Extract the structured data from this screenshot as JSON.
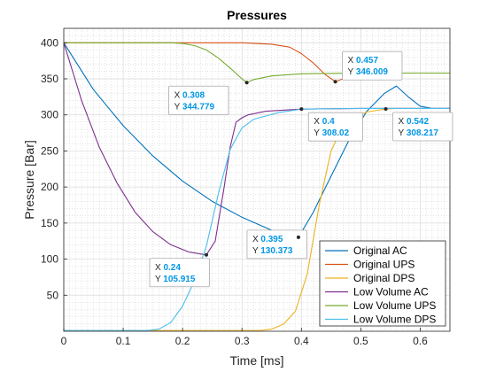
{
  "chart_data": {
    "type": "line",
    "title": "Pressures",
    "xlabel": "Time [ms]",
    "ylabel": "Pressure [Bar]",
    "xlim": [
      0,
      0.65
    ],
    "ylim": [
      0,
      420
    ],
    "xticks": [
      0,
      0.1,
      0.2,
      0.3,
      0.4,
      0.5,
      0.6
    ],
    "xtick_labels": [
      "0",
      "0.1",
      "0.2",
      "0.3",
      "0.4",
      "0.5",
      "0.6"
    ],
    "yticks": [
      50,
      100,
      150,
      200,
      250,
      300,
      350,
      400
    ],
    "ytick_labels": [
      "50",
      "100",
      "150",
      "200",
      "250",
      "300",
      "350",
      "400"
    ],
    "grid": "major and minor",
    "legend_position": "bottom-right",
    "series": [
      {
        "name": "Original AC",
        "color": "#0072BD",
        "x": [
          0,
          0.05,
          0.1,
          0.15,
          0.2,
          0.25,
          0.3,
          0.35,
          0.395,
          0.42,
          0.45,
          0.48,
          0.51,
          0.54,
          0.56,
          0.58,
          0.6,
          0.62,
          0.65
        ],
        "y": [
          400,
          335,
          285,
          243,
          208,
          180,
          158,
          140,
          130.373,
          165,
          215,
          265,
          305,
          330,
          340,
          325,
          312,
          309,
          309
        ]
      },
      {
        "name": "Original UPS",
        "color": "#D95319",
        "x": [
          0,
          0.3,
          0.35,
          0.38,
          0.4,
          0.42,
          0.44,
          0.457,
          0.47,
          0.5,
          0.55,
          0.6,
          0.65
        ],
        "y": [
          400,
          400,
          398,
          394,
          385,
          372,
          356,
          346.009,
          350,
          356,
          358,
          358,
          358
        ]
      },
      {
        "name": "Original DPS",
        "color": "#EDB120",
        "x": [
          0,
          0.33,
          0.35,
          0.37,
          0.39,
          0.41,
          0.43,
          0.45,
          0.47,
          0.49,
          0.51,
          0.542,
          0.56,
          0.6,
          0.65
        ],
        "y": [
          1,
          1,
          3,
          10,
          28,
          80,
          175,
          250,
          285,
          298,
          304,
          308.217,
          309,
          309,
          309
        ]
      },
      {
        "name": "Low Volume AC",
        "color": "#7E2F8E",
        "x": [
          0,
          0.03,
          0.06,
          0.09,
          0.12,
          0.15,
          0.18,
          0.21,
          0.24,
          0.255,
          0.27,
          0.28,
          0.29,
          0.3,
          0.31,
          0.34,
          0.4,
          0.5,
          0.65
        ],
        "y": [
          400,
          320,
          255,
          205,
          165,
          138,
          120,
          110,
          105.915,
          125,
          200,
          255,
          290,
          296,
          300,
          305,
          308,
          309,
          309
        ]
      },
      {
        "name": "Low Volume UPS",
        "color": "#77AC30",
        "x": [
          0,
          0.18,
          0.2,
          0.22,
          0.24,
          0.26,
          0.28,
          0.3,
          0.308,
          0.32,
          0.35,
          0.4,
          0.5,
          0.65
        ],
        "y": [
          400,
          400,
          399,
          396,
          390,
          379,
          365,
          350,
          344.779,
          349,
          354,
          357,
          358,
          358
        ]
      },
      {
        "name": "Low Volume DPS",
        "color": "#4DBEEE",
        "x": [
          0,
          0.14,
          0.16,
          0.18,
          0.2,
          0.22,
          0.24,
          0.26,
          0.28,
          0.3,
          0.32,
          0.36,
          0.4,
          0.5,
          0.65
        ],
        "y": [
          1,
          1,
          3,
          12,
          35,
          70,
          118,
          190,
          252,
          282,
          294,
          303,
          308.02,
          309,
          309
        ]
      }
    ],
    "annotations": [
      {
        "x": 0.308,
        "y": 344.779,
        "x_label": "0.308",
        "y_label": "344.779"
      },
      {
        "x": 0.457,
        "y": 346.009,
        "x_label": "0.457",
        "y_label": "346.009"
      },
      {
        "x": 0.4,
        "y": 308.02,
        "x_label": "0.4",
        "y_label": "308.02"
      },
      {
        "x": 0.542,
        "y": 308.217,
        "x_label": "0.542",
        "y_label": "308.217"
      },
      {
        "x": 0.24,
        "y": 105.915,
        "x_label": "0.24",
        "y_label": "105.915"
      },
      {
        "x": 0.395,
        "y": 130.373,
        "x_label": "0.395",
        "y_label": "130.373"
      }
    ],
    "annotation_prefix_x": "X",
    "annotation_prefix_y": "Y",
    "annotation_value_color": "#0096E6"
  }
}
